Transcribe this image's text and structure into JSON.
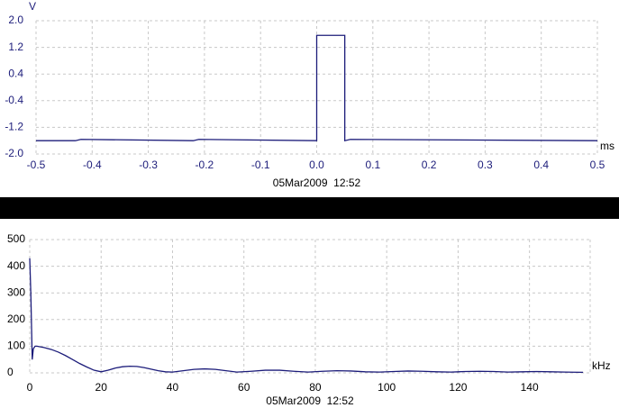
{
  "chart_data": [
    {
      "type": "line",
      "y_unit": "V",
      "x_unit": "ms",
      "caption": "05Mar2009  12:52",
      "color": "#1c1c7a",
      "grid": true,
      "xlim": [
        -0.5,
        0.5
      ],
      "ylim": [
        -2,
        2
      ],
      "xticks": [
        -0.5,
        -0.4,
        -0.3,
        -0.2,
        -0.1,
        {
          "value": 0,
          "label": "0.0"
        },
        0.1,
        0.2,
        0.3,
        0.4,
        0.5
      ],
      "yticks": [
        {
          "value": 2,
          "label": "2.0"
        },
        1.2,
        0.4,
        -0.4,
        -1.2,
        {
          "value": -2,
          "label": "-2.0"
        }
      ],
      "x": [
        -0.5,
        -0.43,
        -0.42,
        -0.22,
        -0.21,
        0,
        0,
        0.05,
        0.05,
        0.06,
        0.5
      ],
      "values": [
        -1.6,
        -1.6,
        -1.56,
        -1.6,
        -1.56,
        -1.6,
        1.56,
        1.56,
        -1.6,
        -1.56,
        -1.6
      ]
    },
    {
      "type": "line",
      "x_unit": "kHz",
      "caption": "05Mar2009  12:52",
      "color": "#1c1c7a",
      "grid": true,
      "xlim": [
        0,
        157
      ],
      "ylim": [
        0,
        500
      ],
      "xticks": [
        0,
        20,
        40,
        60,
        80,
        100,
        120,
        140
      ],
      "yticks": [
        0,
        100,
        200,
        300,
        400,
        500
      ],
      "x": [
        0,
        0.3,
        0.7,
        1,
        1.5,
        2,
        4,
        6,
        8,
        10,
        12,
        14,
        16,
        18,
        20,
        22,
        24,
        26,
        28,
        30,
        32,
        34,
        36,
        38,
        40,
        43,
        46,
        49,
        52,
        55,
        58,
        62,
        66,
        70,
        74,
        78,
        82,
        86,
        90,
        94,
        98,
        102,
        106,
        110,
        114,
        118,
        122,
        126,
        130,
        134,
        138,
        142,
        146,
        150,
        155
      ],
      "values": [
        430,
        300,
        50,
        90,
        100,
        100,
        95,
        88,
        78,
        65,
        50,
        35,
        22,
        10,
        4,
        10,
        18,
        23,
        25,
        24,
        20,
        14,
        8,
        4,
        3,
        8,
        13,
        15,
        13,
        8,
        3,
        6,
        10,
        10,
        6,
        3,
        6,
        8,
        7,
        4,
        3,
        5,
        7,
        6,
        4,
        3,
        5,
        6,
        5,
        3,
        4,
        5,
        4,
        3,
        2
      ]
    }
  ]
}
